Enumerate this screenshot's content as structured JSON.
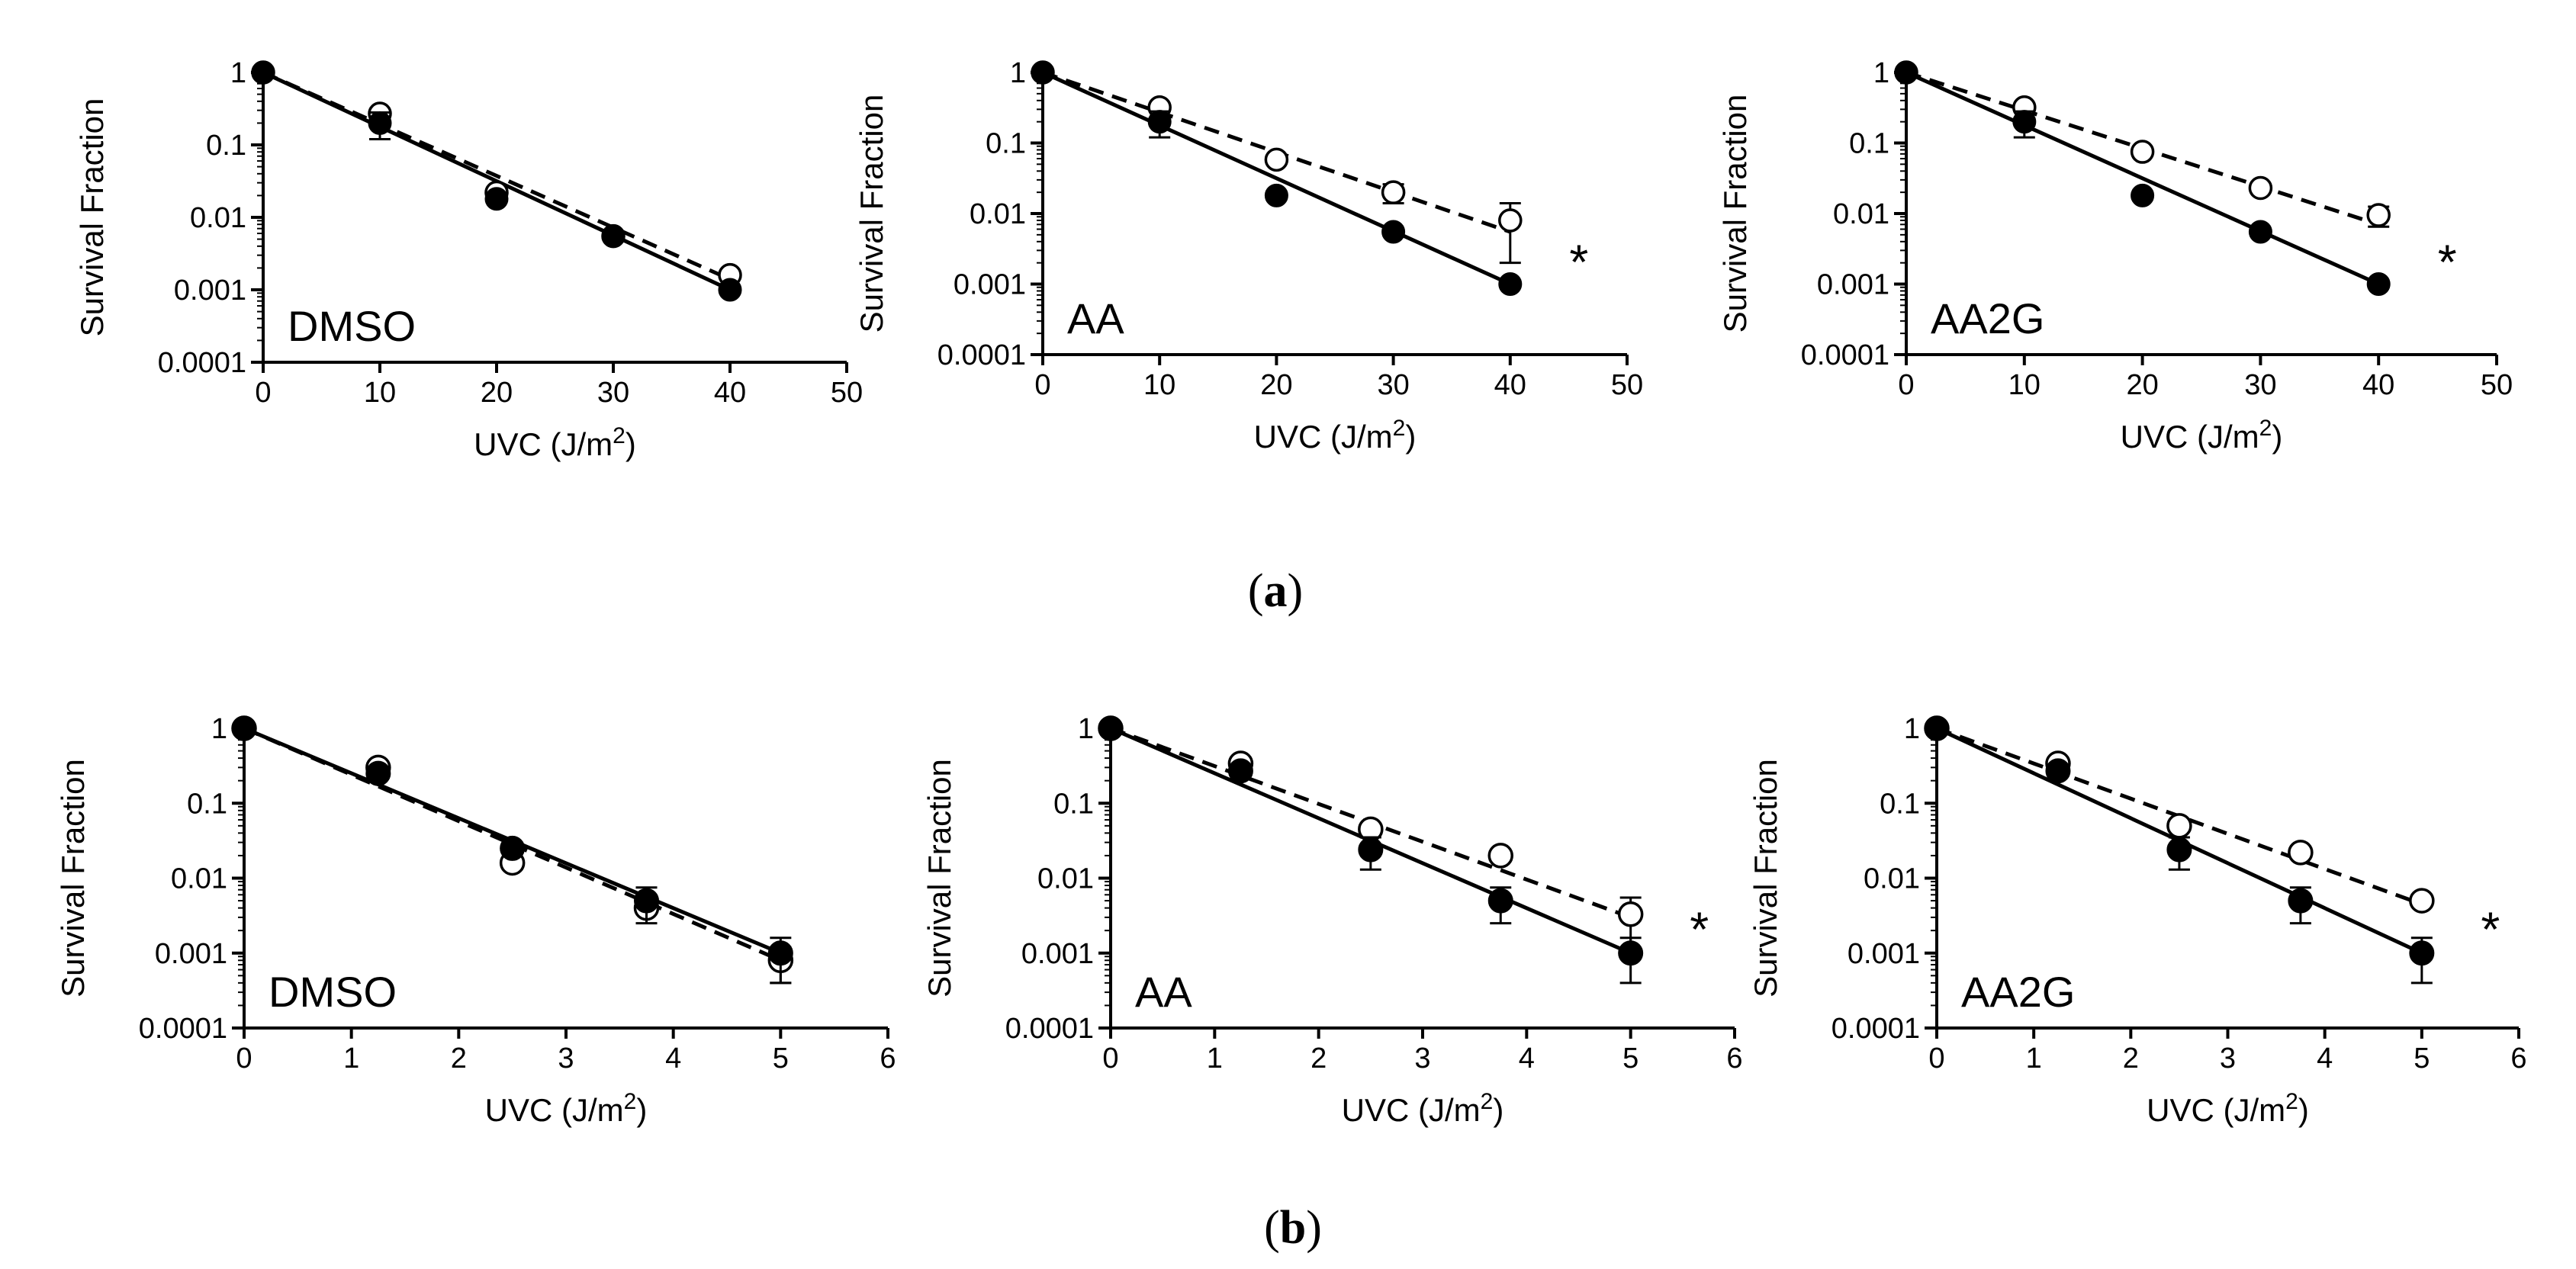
{
  "captions": {
    "a": {
      "open": "(",
      "letter": "a",
      "close": ")"
    },
    "b": {
      "open": "(",
      "letter": "b",
      "close": ")"
    }
  },
  "colors": {
    "ink": "#000000",
    "open_fill": "#ffffff"
  },
  "chart_data": [
    {
      "id": "a1",
      "type": "scatter",
      "panel_label": "DMSO",
      "xlabel": "UVC (J/m",
      "xlabel_sup": "2",
      "xlabel_end": ")",
      "ylabel": "Survival Fraction",
      "xlim": [
        0,
        50
      ],
      "xticks": [
        0,
        10,
        20,
        30,
        40,
        50
      ],
      "xtick_labels": [
        "0",
        "10",
        "20",
        "30",
        "40",
        "50"
      ],
      "ylim": [
        0.0001,
        1
      ],
      "yticks": [
        1,
        0.1,
        0.01,
        0.001,
        0.0001
      ],
      "ytick_labels": [
        "1",
        "0.1",
        "0.01",
        "0.001",
        "0.0001"
      ],
      "significance": "",
      "series": [
        {
          "name": "filled",
          "marker": "filled",
          "line": "solid",
          "x": [
            0,
            10,
            20,
            30,
            40
          ],
          "y": [
            1,
            0.2,
            0.018,
            0.0055,
            0.001
          ],
          "err": [
            0,
            0.08,
            0,
            0,
            0
          ],
          "fit": [
            [
              0,
              1
            ],
            [
              40,
              0.001
            ]
          ]
        },
        {
          "name": "open",
          "marker": "open",
          "line": "dashed",
          "x": [
            0,
            10,
            20,
            30,
            40
          ],
          "y": [
            1,
            0.27,
            0.022,
            0.0055,
            0.0016
          ],
          "err": [
            0,
            0,
            0,
            0,
            0
          ],
          "fit": [
            [
              0,
              1
            ],
            [
              40,
              0.0014
            ]
          ]
        }
      ]
    },
    {
      "id": "a2",
      "type": "scatter",
      "panel_label": "AA",
      "xlabel": "UVC (J/m",
      "xlabel_sup": "2",
      "xlabel_end": ")",
      "ylabel": "Survival Fraction",
      "xlim": [
        0,
        50
      ],
      "xticks": [
        0,
        10,
        20,
        30,
        40,
        50
      ],
      "xtick_labels": [
        "0",
        "10",
        "20",
        "30",
        "40",
        "50"
      ],
      "ylim": [
        0.0001,
        1
      ],
      "yticks": [
        1,
        0.1,
        0.01,
        0.001,
        0.0001
      ],
      "ytick_labels": [
        "1",
        "0.1",
        "0.01",
        "0.001",
        "0.0001"
      ],
      "significance": "*",
      "series": [
        {
          "name": "filled",
          "marker": "filled",
          "line": "solid",
          "x": [
            0,
            10,
            20,
            30,
            40
          ],
          "y": [
            1,
            0.2,
            0.018,
            0.0055,
            0.001
          ],
          "err": [
            0,
            0.08,
            0,
            0,
            0
          ],
          "fit": [
            [
              0,
              1
            ],
            [
              40,
              0.001
            ]
          ]
        },
        {
          "name": "open",
          "marker": "open",
          "line": "dashed",
          "x": [
            0,
            10,
            20,
            30,
            40
          ],
          "y": [
            1,
            0.32,
            0.058,
            0.02,
            0.008
          ],
          "err": [
            0,
            0,
            0,
            0.006,
            0.006
          ],
          "fit": [
            [
              0,
              1
            ],
            [
              40,
              0.0055
            ]
          ]
        }
      ]
    },
    {
      "id": "a3",
      "type": "scatter",
      "panel_label": "AA2G",
      "xlabel": "UVC (J/m",
      "xlabel_sup": "2",
      "xlabel_end": ")",
      "ylabel": "Survival Fraction",
      "xlim": [
        0,
        50
      ],
      "xticks": [
        0,
        10,
        20,
        30,
        40,
        50
      ],
      "xtick_labels": [
        "0",
        "10",
        "20",
        "30",
        "40",
        "50"
      ],
      "ylim": [
        0.0001,
        1
      ],
      "yticks": [
        1,
        0.1,
        0.01,
        0.001,
        0.0001
      ],
      "ytick_labels": [
        "1",
        "0.1",
        "0.01",
        "0.001",
        "0.0001"
      ],
      "significance": "*",
      "series": [
        {
          "name": "filled",
          "marker": "filled",
          "line": "solid",
          "x": [
            0,
            10,
            20,
            30,
            40
          ],
          "y": [
            1,
            0.2,
            0.018,
            0.0055,
            0.001
          ],
          "err": [
            0,
            0.08,
            0,
            0,
            0
          ],
          "fit": [
            [
              0,
              1
            ],
            [
              40,
              0.001
            ]
          ]
        },
        {
          "name": "open",
          "marker": "open",
          "line": "dashed",
          "x": [
            0,
            10,
            20,
            30,
            40
          ],
          "y": [
            1,
            0.32,
            0.075,
            0.023,
            0.0095
          ],
          "err": [
            0,
            0,
            0,
            0,
            0.003
          ],
          "fit": [
            [
              0,
              1
            ],
            [
              40,
              0.007
            ]
          ]
        }
      ]
    },
    {
      "id": "b1",
      "type": "scatter",
      "panel_label": "DMSO",
      "xlabel": "UVC (J/m",
      "xlabel_sup": "2",
      "xlabel_end": ")",
      "ylabel": "Survival Fraction",
      "xlim": [
        0,
        6
      ],
      "xticks": [
        0,
        1,
        2,
        3,
        4,
        5,
        6
      ],
      "xtick_labels": [
        "0",
        "1",
        "2",
        "3",
        "4",
        "5",
        "6"
      ],
      "ylim": [
        0.0001,
        1
      ],
      "yticks": [
        1,
        0.1,
        0.01,
        0.001,
        0.0001
      ],
      "ytick_labels": [
        "1",
        "0.1",
        "0.01",
        "0.001",
        "0.0001"
      ],
      "significance": "",
      "series": [
        {
          "name": "filled",
          "marker": "filled",
          "line": "solid",
          "x": [
            0,
            1.25,
            2.5,
            3.75,
            5
          ],
          "y": [
            1,
            0.25,
            0.025,
            0.005,
            0.001
          ],
          "err": [
            0,
            0,
            0,
            0.0025,
            0.0006
          ],
          "fit": [
            [
              0,
              1
            ],
            [
              5,
              0.001
            ]
          ]
        },
        {
          "name": "open",
          "marker": "open",
          "line": "dashed",
          "x": [
            0,
            1.25,
            2.5,
            3.75,
            5
          ],
          "y": [
            1,
            0.3,
            0.016,
            0.004,
            0.0008
          ],
          "err": [
            0,
            0,
            0,
            0,
            0.0004
          ],
          "fit": [
            [
              0,
              1
            ],
            [
              5,
              0.0008
            ]
          ]
        }
      ]
    },
    {
      "id": "b2",
      "type": "scatter",
      "panel_label": "AA",
      "xlabel": "UVC (J/m",
      "xlabel_sup": "2",
      "xlabel_end": ")",
      "ylabel": "Survival Fraction",
      "xlim": [
        0,
        6
      ],
      "xticks": [
        0,
        1,
        2,
        3,
        4,
        5,
        6
      ],
      "xtick_labels": [
        "0",
        "1",
        "2",
        "3",
        "4",
        "5",
        "6"
      ],
      "ylim": [
        0.0001,
        1
      ],
      "yticks": [
        1,
        0.1,
        0.01,
        0.001,
        0.0001
      ],
      "ytick_labels": [
        "1",
        "0.1",
        "0.01",
        "0.001",
        "0.0001"
      ],
      "significance": "*",
      "series": [
        {
          "name": "filled",
          "marker": "filled",
          "line": "solid",
          "x": [
            0,
            1.25,
            2.5,
            3.75,
            5
          ],
          "y": [
            1,
            0.27,
            0.024,
            0.005,
            0.001
          ],
          "err": [
            0,
            0,
            0.011,
            0.0025,
            0.0006
          ],
          "fit": [
            [
              0,
              1
            ],
            [
              5,
              0.001
            ]
          ]
        },
        {
          "name": "open",
          "marker": "open",
          "line": "dashed",
          "x": [
            0,
            1.25,
            2.5,
            3.75,
            5
          ],
          "y": [
            1,
            0.34,
            0.045,
            0.02,
            0.0033
          ],
          "err": [
            0,
            0,
            0,
            0,
            0.0022
          ],
          "fit": [
            [
              0,
              1
            ],
            [
              5,
              0.003
            ]
          ]
        }
      ]
    },
    {
      "id": "b3",
      "type": "scatter",
      "panel_label": "AA2G",
      "xlabel": "UVC (J/m",
      "xlabel_sup": "2",
      "xlabel_end": ")",
      "ylabel": "Survival Fraction",
      "xlim": [
        0,
        6
      ],
      "xticks": [
        0,
        1,
        2,
        3,
        4,
        5,
        6
      ],
      "xtick_labels": [
        "0",
        "1",
        "2",
        "3",
        "4",
        "5",
        "6"
      ],
      "ylim": [
        0.0001,
        1
      ],
      "yticks": [
        1,
        0.1,
        0.01,
        0.001,
        0.0001
      ],
      "ytick_labels": [
        "1",
        "0.1",
        "0.01",
        "0.001",
        "0.0001"
      ],
      "significance": "*",
      "series": [
        {
          "name": "filled",
          "marker": "filled",
          "line": "solid",
          "x": [
            0,
            1.25,
            2.5,
            3.75,
            5
          ],
          "y": [
            1,
            0.27,
            0.024,
            0.005,
            0.001
          ],
          "err": [
            0,
            0,
            0.011,
            0.0025,
            0.0006
          ],
          "fit": [
            [
              0,
              1
            ],
            [
              5,
              0.001
            ]
          ]
        },
        {
          "name": "open",
          "marker": "open",
          "line": "dashed",
          "x": [
            0,
            1.25,
            2.5,
            3.75,
            5
          ],
          "y": [
            1,
            0.34,
            0.05,
            0.022,
            0.005
          ],
          "err": [
            0,
            0,
            0,
            0,
            0
          ],
          "fit": [
            [
              0,
              1
            ],
            [
              5,
              0.0045
            ]
          ]
        }
      ]
    }
  ]
}
